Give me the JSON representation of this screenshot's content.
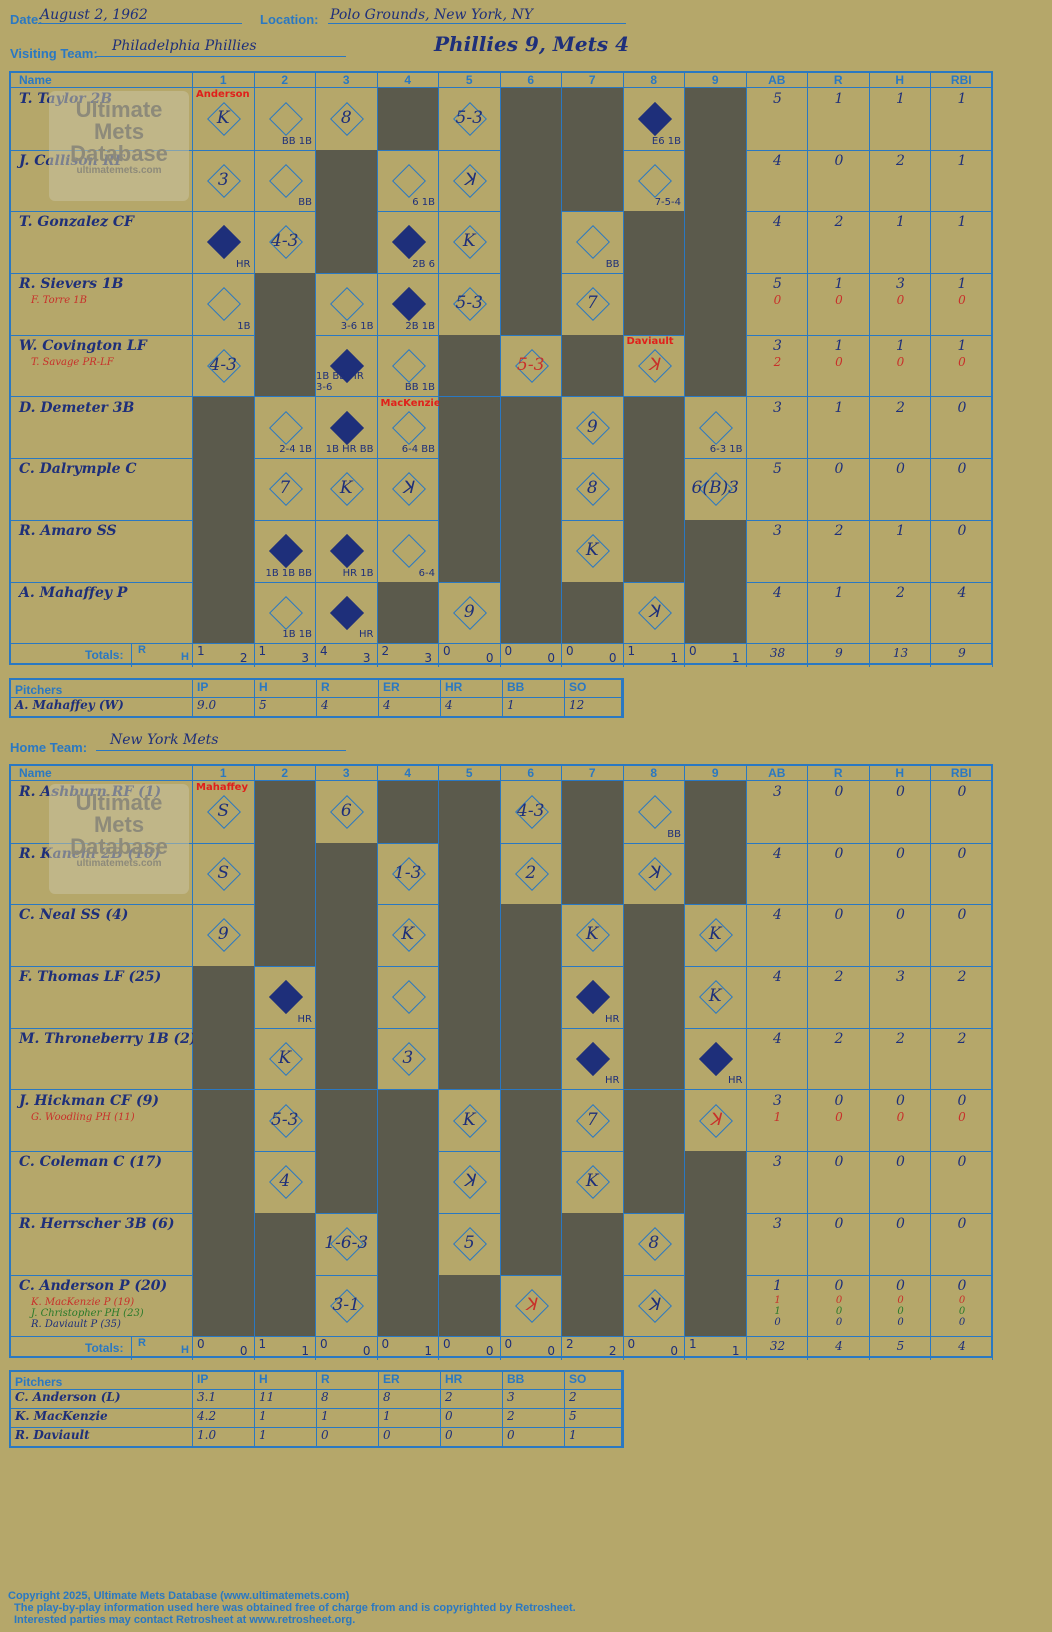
{
  "header": {
    "date_label": "Date:",
    "date": "August 2, 1962",
    "location_label": "Location:",
    "location": "Polo Grounds, New York, NY",
    "visit_label": "Visiting Team:",
    "visit_team": "Philadelphia Phillies",
    "home_label": "Home Team:",
    "home_team": "New York Mets",
    "score_title": "Phillies 9, Mets 4"
  },
  "cols": {
    "name": "Name",
    "innings": [
      "1",
      "2",
      "3",
      "4",
      "5",
      "6",
      "7",
      "8",
      "9"
    ],
    "stats": [
      "AB",
      "R",
      "H",
      "RBI"
    ],
    "totals": "Totals:",
    "r": "R",
    "h": "H"
  },
  "logo": {
    "line1": "Ultimate",
    "line2": "Mets",
    "line3": "Database",
    "url": "ultimatemets.com"
  },
  "visitors": {
    "players": [
      {
        "name": "T. Taylor 2B",
        "stats": [
          "5",
          "1",
          "1",
          "1"
        ]
      },
      {
        "name": "J. Callison RF",
        "stats": [
          "4",
          "0",
          "2",
          "1"
        ]
      },
      {
        "name": "T. Gonzalez CF",
        "stats": [
          "4",
          "2",
          "1",
          "1"
        ]
      },
      {
        "name": "R. Sievers 1B",
        "sub": "F. Torre 1B",
        "stats": [
          "5",
          "1",
          "3",
          "1"
        ],
        "substats": [
          "0",
          "0",
          "0",
          "0"
        ]
      },
      {
        "name": "W. Covington LF",
        "sub": "T. Savage PR-LF",
        "stats": [
          "3",
          "1",
          "1",
          "1"
        ],
        "substats": [
          "2",
          "0",
          "0",
          "0"
        ]
      },
      {
        "name": "D. Demeter 3B",
        "stats": [
          "3",
          "1",
          "2",
          "0"
        ]
      },
      {
        "name": "C. Dalrymple C",
        "stats": [
          "5",
          "0",
          "0",
          "0"
        ]
      },
      {
        "name": "R. Amaro SS",
        "stats": [
          "3",
          "2",
          "1",
          "0"
        ]
      },
      {
        "name": "A. Mahaffey P",
        "stats": [
          "4",
          "1",
          "2",
          "4"
        ]
      }
    ],
    "totals": [
      [
        "1",
        "2"
      ],
      [
        "1",
        "3"
      ],
      [
        "4",
        "3"
      ],
      [
        "2",
        "3"
      ],
      [
        "0",
        "0"
      ],
      [
        "0",
        "0"
      ],
      [
        "0",
        "0"
      ],
      [
        "1",
        "1"
      ],
      [
        "0",
        "1"
      ]
    ],
    "stat_totals": [
      "38",
      "9",
      "13",
      "9"
    ],
    "pitch_header": [
      "Pitchers",
      "IP",
      "H",
      "R",
      "ER",
      "HR",
      "BB",
      "SO"
    ],
    "pitchers": [
      [
        "A. Mahaffey (W)",
        "9.0",
        "5",
        "4",
        "4",
        "4",
        "1",
        "12"
      ]
    ]
  },
  "home": {
    "players": [
      {
        "name": "R. Ashburn RF (1)",
        "stats": [
          "3",
          "0",
          "0",
          "0"
        ]
      },
      {
        "name": "R. Kanehl 2B (10)",
        "stats": [
          "4",
          "0",
          "0",
          "0"
        ]
      },
      {
        "name": "C. Neal SS (4)",
        "stats": [
          "4",
          "0",
          "0",
          "0"
        ]
      },
      {
        "name": "F. Thomas LF (25)",
        "stats": [
          "4",
          "2",
          "3",
          "2"
        ]
      },
      {
        "name": "M. Throneberry 1B (2)",
        "stats": [
          "4",
          "2",
          "2",
          "2"
        ]
      },
      {
        "name": "J. Hickman CF (9)",
        "sub": "G. Woodling PH (11)",
        "stats": [
          "3",
          "0",
          "0",
          "0"
        ],
        "substats": [
          "1",
          "0",
          "0",
          "0"
        ]
      },
      {
        "name": "C. Coleman C (17)",
        "stats": [
          "3",
          "0",
          "0",
          "0"
        ]
      },
      {
        "name": "R. Herrscher 3B (6)",
        "stats": [
          "3",
          "0",
          "0",
          "0"
        ]
      },
      {
        "name": "C. Anderson P (20)",
        "subs": [
          "K. MacKenzie P (19)",
          "J. Christopher PH (23)",
          "R. Daviault P (35)"
        ],
        "stats": [
          "1",
          "0",
          "0",
          "0"
        ],
        "substats_list": [
          [
            "1",
            "0",
            "0",
            "0"
          ],
          [
            "1",
            "0",
            "0",
            "0"
          ],
          [
            "0",
            "0",
            "0",
            "0"
          ]
        ]
      }
    ],
    "totals": [
      [
        "0",
        "0"
      ],
      [
        "1",
        "1"
      ],
      [
        "0",
        "0"
      ],
      [
        "0",
        "1"
      ],
      [
        "0",
        "0"
      ],
      [
        "0",
        "0"
      ],
      [
        "2",
        "2"
      ],
      [
        "0",
        "0"
      ],
      [
        "1",
        "1"
      ]
    ],
    "stat_totals": [
      "32",
      "4",
      "5",
      "4"
    ],
    "pitch_header": [
      "Pitchers",
      "IP",
      "H",
      "R",
      "ER",
      "HR",
      "BB",
      "SO"
    ],
    "pitchers": [
      [
        "C. Anderson (L)",
        "3.1",
        "11",
        "8",
        "8",
        "2",
        "3",
        "2"
      ],
      [
        "K. MacKenzie",
        "4.2",
        "1",
        "1",
        "1",
        "0",
        "2",
        "5"
      ],
      [
        "R. Daviault",
        "1.0",
        "1",
        "0",
        "0",
        "0",
        "0",
        "1"
      ]
    ]
  },
  "vplays": [
    [
      [
        "K",
        "",
        "Anderson"
      ],
      [
        "",
        "BB 1B",
        ""
      ],
      [
        "8",
        "",
        ""
      ],
      null,
      [
        "5-3",
        "",
        ""
      ],
      null,
      null,
      [
        "",
        "E6 1B",
        "",
        true
      ],
      null
    ],
    [
      [
        "3",
        "",
        ""
      ],
      [
        "",
        "BB",
        ""
      ],
      null,
      [
        "",
        "6 1B",
        ""
      ],
      [
        "ꓘ",
        "",
        ""
      ],
      null,
      null,
      [
        "",
        "7-5-4",
        ""
      ],
      null
    ],
    [
      [
        "",
        "HR",
        "",
        true
      ],
      [
        "4-3",
        "",
        ""
      ],
      null,
      [
        "",
        "2B 6",
        "",
        true
      ],
      [
        "K",
        "",
        ""
      ],
      null,
      [
        "",
        "BB",
        ""
      ],
      null
    ],
    [
      [
        "",
        "1B",
        ""
      ],
      null,
      [
        "",
        "3-6 1B",
        ""
      ],
      [
        "",
        "2B 1B",
        "",
        true
      ],
      [
        "5-3",
        "",
        ""
      ],
      null,
      [
        "7",
        "",
        ""
      ],
      null
    ],
    [
      [
        "4-3",
        "",
        ""
      ],
      null,
      [
        "",
        "1B BB HR 3-6",
        "",
        true
      ],
      [
        "",
        "BB 1B",
        ""
      ],
      null,
      [
        "5-3",
        "",
        "",
        false,
        true
      ],
      null,
      [
        "ꓘ",
        "",
        "Daviault",
        false,
        true
      ]
    ],
    [
      null,
      [
        "",
        "2-4 1B",
        ""
      ],
      [
        "",
        "1B HR BB",
        "",
        true
      ],
      [
        "",
        "6-4 BB",
        "MacKenzie"
      ],
      null,
      null,
      [
        "9",
        "",
        ""
      ],
      null,
      [
        "",
        "6-3 1B",
        ""
      ]
    ],
    [
      null,
      [
        "7",
        "",
        ""
      ],
      [
        "K",
        "",
        ""
      ],
      [
        "ꓘ",
        "",
        ""
      ],
      null,
      null,
      [
        "8",
        "",
        ""
      ],
      null,
      [
        "6(B)3",
        "",
        ""
      ]
    ],
    [
      null,
      [
        "",
        "1B 1B BB",
        "",
        true
      ],
      [
        "",
        "HR 1B",
        "",
        true
      ],
      [
        "",
        "6-4",
        ""
      ],
      null,
      null,
      [
        "K",
        "",
        ""
      ],
      null,
      null
    ],
    [
      null,
      [
        "",
        "1B 1B",
        ""
      ],
      [
        "",
        "HR",
        "",
        true
      ],
      null,
      [
        "9",
        "",
        ""
      ],
      null,
      null,
      [
        "ꓘ",
        "",
        ""
      ],
      null
    ]
  ],
  "hplays": [
    [
      [
        "S",
        "",
        "Mahaffey"
      ],
      null,
      [
        "6",
        "",
        ""
      ],
      null,
      null,
      [
        "4-3",
        "",
        ""
      ],
      null,
      [
        "",
        "BB",
        ""
      ],
      null
    ],
    [
      [
        "S",
        "",
        ""
      ],
      null,
      null,
      [
        "1-3",
        "",
        ""
      ],
      null,
      [
        "2",
        "",
        ""
      ],
      null,
      [
        "ꓘ",
        "",
        ""
      ],
      null
    ],
    [
      [
        "9",
        "",
        ""
      ],
      null,
      null,
      [
        "K",
        "",
        ""
      ],
      null,
      null,
      [
        "K",
        "",
        ""
      ],
      null,
      [
        "K",
        "",
        ""
      ]
    ],
    [
      null,
      [
        "",
        "HR",
        "",
        true
      ],
      null,
      [
        "",
        "",
        ""
      ],
      null,
      null,
      [
        "",
        "HR",
        "",
        true
      ],
      null,
      [
        "K",
        "",
        ""
      ]
    ],
    [
      null,
      [
        "K",
        "",
        ""
      ],
      null,
      [
        "3",
        "",
        ""
      ],
      null,
      null,
      [
        "",
        "HR",
        "",
        true
      ],
      null,
      [
        "",
        "HR",
        "",
        true
      ]
    ],
    [
      null,
      [
        "5-3",
        "",
        ""
      ],
      null,
      null,
      [
        "K",
        "",
        ""
      ],
      null,
      [
        "7",
        "",
        ""
      ],
      null,
      [
        "ꓘ",
        "",
        "",
        false,
        true
      ]
    ],
    [
      null,
      [
        "4",
        "",
        ""
      ],
      null,
      null,
      [
        "ꓘ",
        "",
        ""
      ],
      null,
      [
        "K",
        "",
        ""
      ],
      null,
      null
    ],
    [
      null,
      null,
      [
        "1-6-3",
        "",
        ""
      ],
      null,
      [
        "5",
        "",
        ""
      ],
      null,
      null,
      [
        "8",
        "",
        ""
      ],
      null
    ],
    [
      null,
      null,
      [
        "3-1",
        "",
        ""
      ],
      null,
      null,
      [
        "ꓘ",
        "",
        "",
        false,
        true
      ],
      null,
      [
        "ꓘ",
        "",
        ""
      ],
      null
    ]
  ],
  "footer": [
    "Copyright 2025, Ultimate Mets Database (www.ultimatemets.com)",
    "The play-by-play information used here was obtained free of charge from and is copyrighted by Retrosheet.",
    "Interested parties may contact Retrosheet at www.retrosheet.org."
  ]
}
